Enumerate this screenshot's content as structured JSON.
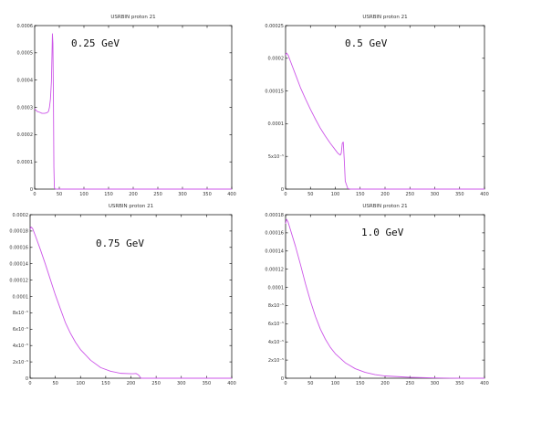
{
  "line_color": "#cc55e8",
  "chart_data": [
    {
      "type": "line",
      "title": "USRBIN proton 21",
      "annotation": "0.25 GeV",
      "xlim": [
        0,
        400
      ],
      "ylim": [
        0,
        0.0006
      ],
      "x_ticks": [
        "0",
        "50",
        "100",
        "150",
        "200",
        "250",
        "300",
        "350",
        "400"
      ],
      "y_ticks": [
        "0",
        "0.0001",
        "0.0002",
        "0.0003",
        "0.0004",
        "0.0005",
        "0.0006"
      ],
      "x": [
        0,
        5,
        10,
        15,
        20,
        25,
        28,
        30,
        32,
        34,
        35,
        36,
        37,
        38,
        39,
        40,
        42,
        45,
        50,
        100,
        150,
        200,
        250,
        300,
        350,
        400
      ],
      "y": [
        0.000295,
        0.000285,
        0.000282,
        0.000278,
        0.000278,
        0.00028,
        0.000285,
        0.0003,
        0.00033,
        0.000395,
        0.00048,
        0.00057,
        0.000535,
        0.00035,
        8e-05,
        5e-06,
        0,
        0,
        0,
        0,
        0,
        0,
        0,
        0,
        0,
        0
      ]
    },
    {
      "type": "line",
      "title": "USRBIN proton 21",
      "annotation": "0.5 GeV",
      "xlim": [
        0,
        400
      ],
      "ylim": [
        0,
        0.00025
      ],
      "x_ticks": [
        "0",
        "50",
        "100",
        "150",
        "200",
        "250",
        "300",
        "350",
        "400"
      ],
      "y_ticks": [
        "0",
        "5x10⁻⁵",
        "0.0001",
        "0.00015",
        "0.0002",
        "0.00025"
      ],
      "x": [
        0,
        2,
        5,
        10,
        20,
        30,
        40,
        50,
        60,
        70,
        80,
        90,
        100,
        105,
        110,
        112,
        114,
        116,
        118,
        120,
        125,
        130,
        200,
        300,
        400
      ],
      "y": [
        0.000205,
        0.000208,
        0.000205,
        0.000195,
        0.000175,
        0.000155,
        0.000138,
        0.000122,
        0.000107,
        9.3e-05,
        8.1e-05,
        7e-05,
        6e-05,
        5.5e-05,
        5.2e-05,
        5.5e-05,
        7e-05,
        7.2e-05,
        4.5e-05,
        1.2e-05,
        1e-06,
        0,
        0,
        0,
        0
      ]
    },
    {
      "type": "line",
      "title": "USRBIN proton 21",
      "annotation": "0.75 GeV",
      "xlim": [
        0,
        400
      ],
      "ylim": [
        0,
        0.0002
      ],
      "x_ticks": [
        "0",
        "50",
        "100",
        "150",
        "200",
        "250",
        "300",
        "350",
        "400"
      ],
      "y_ticks": [
        "0",
        "2x10⁻⁵",
        "4x10⁻⁵",
        "6x10⁻⁵",
        "8x10⁻⁵",
        "0.0001",
        "0.00012",
        "0.00014",
        "0.00016",
        "0.00018",
        "0.0002"
      ],
      "x": [
        0,
        2,
        5,
        10,
        20,
        30,
        40,
        50,
        60,
        70,
        80,
        90,
        100,
        120,
        140,
        160,
        180,
        200,
        205,
        210,
        215,
        220,
        250,
        300,
        400
      ],
      "y": [
        0.000182,
        0.000185,
        0.000183,
        0.000175,
        0.000158,
        0.00014,
        0.000121,
        0.000102,
        8.5e-05,
        6.8e-05,
        5.5e-05,
        4.4e-05,
        3.5e-05,
        2.2e-05,
        1.3e-05,
        8.5e-06,
        6e-06,
        5.5e-06,
        5.5e-06,
        5.8e-06,
        4e-06,
        0,
        0,
        0,
        0
      ]
    },
    {
      "type": "line",
      "title": "USRBIN proton 21",
      "annotation": "1.0 GeV",
      "xlim": [
        0,
        400
      ],
      "ylim": [
        0,
        0.00018
      ],
      "x_ticks": [
        "0",
        "50",
        "100",
        "150",
        "200",
        "250",
        "300",
        "350",
        "400"
      ],
      "y_ticks": [
        "0",
        "2x10⁻⁵",
        "4x10⁻⁵",
        "6x10⁻⁵",
        "8x10⁻⁵",
        "0.0001",
        "0.00012",
        "0.00014",
        "0.00016",
        "0.00018"
      ],
      "x": [
        0,
        2,
        5,
        10,
        20,
        30,
        40,
        50,
        60,
        70,
        80,
        90,
        100,
        120,
        140,
        160,
        180,
        200,
        250,
        300,
        330,
        350,
        400
      ],
      "y": [
        0.00017,
        0.000175,
        0.000172,
        0.000163,
        0.000145,
        0.000125,
        0.000104,
        8.5e-05,
        6.8e-05,
        5.4e-05,
        4.3e-05,
        3.4e-05,
        2.7e-05,
        1.7e-05,
        1.05e-05,
        6.5e-06,
        4e-06,
        2.5e-06,
        1e-06,
        3e-07,
        1e-07,
        0,
        0
      ]
    }
  ]
}
